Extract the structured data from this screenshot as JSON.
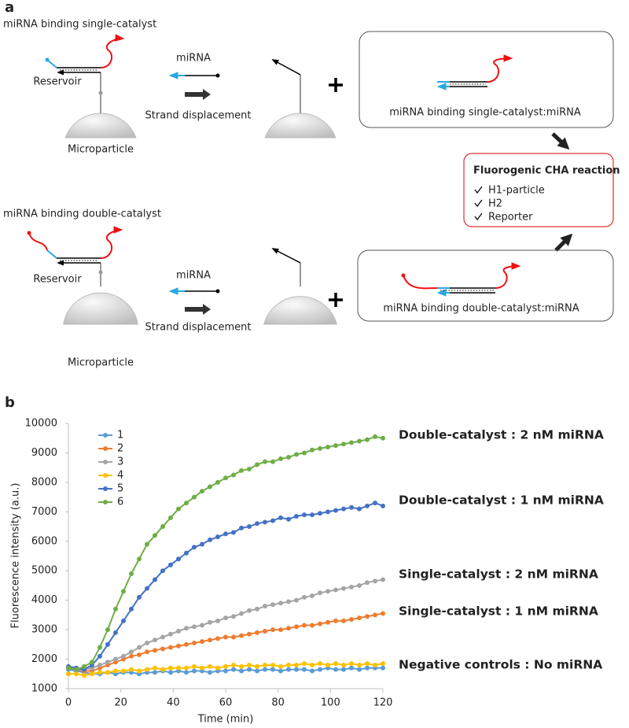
{
  "panel_a": {
    "label": "a",
    "single": {
      "title": "miRNA binding single-catalyst",
      "reservoir": "Reservoir",
      "microparticle": "Microparticle",
      "mirna": "miRNA",
      "step": "Strand displacement",
      "product": "miRNA binding single-catalyst:miRNA"
    },
    "double": {
      "title": "miRNA binding double-catalyst",
      "reservoir": "Reservoir",
      "microparticle": "Microparticle",
      "mirna": "miRNA",
      "step": "Strand displacement",
      "product": "miRNA binding double-catalyst:miRNA"
    },
    "reaction": {
      "title": "Fluorogenic CHA reaction",
      "items": [
        "H1-particle",
        "H2",
        "Reporter"
      ]
    }
  },
  "chart_data": {
    "type": "line",
    "panel_label": "b",
    "x_label": "Time (min)",
    "y_label": "Fluorescence intensity (a.u.)",
    "x": [
      0,
      3,
      6,
      9,
      12,
      15,
      18,
      21,
      24,
      27,
      30,
      33,
      36,
      39,
      42,
      45,
      48,
      51,
      54,
      57,
      60,
      63,
      66,
      69,
      72,
      75,
      78,
      81,
      84,
      87,
      90,
      93,
      96,
      99,
      102,
      105,
      108,
      111,
      114,
      117,
      120
    ],
    "series": [
      {
        "name": "1",
        "color": "#5b9bd5",
        "values": [
          1650,
          1600,
          1550,
          1500,
          1500,
          1550,
          1500,
          1550,
          1550,
          1500,
          1550,
          1550,
          1600,
          1550,
          1600,
          1550,
          1600,
          1600,
          1550,
          1600,
          1600,
          1650,
          1600,
          1650,
          1600,
          1650,
          1650,
          1600,
          1650,
          1650,
          1650,
          1600,
          1650,
          1700,
          1650,
          1650,
          1700,
          1650,
          1700,
          1700,
          1700
        ]
      },
      {
        "name": "2",
        "color": "#ed7d31",
        "values": [
          1700,
          1650,
          1600,
          1600,
          1700,
          1800,
          1900,
          2000,
          2100,
          2150,
          2250,
          2300,
          2350,
          2400,
          2450,
          2500,
          2550,
          2600,
          2650,
          2700,
          2750,
          2750,
          2800,
          2850,
          2900,
          2950,
          3000,
          3000,
          3050,
          3100,
          3150,
          3150,
          3200,
          3250,
          3300,
          3300,
          3350,
          3400,
          3450,
          3500,
          3550
        ]
      },
      {
        "name": "3",
        "color": "#a5a5a5",
        "values": [
          1700,
          1650,
          1650,
          1700,
          1800,
          1900,
          2000,
          2100,
          2250,
          2400,
          2550,
          2650,
          2750,
          2850,
          2950,
          3050,
          3100,
          3150,
          3250,
          3300,
          3400,
          3450,
          3550,
          3650,
          3700,
          3800,
          3850,
          3900,
          3950,
          4000,
          4100,
          4150,
          4250,
          4300,
          4350,
          4400,
          4450,
          4500,
          4600,
          4650,
          4700
        ]
      },
      {
        "name": "4",
        "color": "#ffc000",
        "values": [
          1500,
          1500,
          1450,
          1500,
          1550,
          1550,
          1600,
          1600,
          1650,
          1600,
          1650,
          1700,
          1650,
          1700,
          1700,
          1700,
          1750,
          1700,
          1750,
          1700,
          1750,
          1800,
          1750,
          1800,
          1750,
          1800,
          1800,
          1750,
          1800,
          1800,
          1850,
          1800,
          1850,
          1800,
          1850,
          1800,
          1850,
          1800,
          1850,
          1800,
          1850
        ]
      },
      {
        "name": "5",
        "color": "#4472c4",
        "values": [
          1750,
          1700,
          1650,
          1800,
          2100,
          2500,
          2900,
          3300,
          3700,
          4100,
          4400,
          4700,
          5000,
          5200,
          5400,
          5600,
          5800,
          5900,
          6050,
          6150,
          6250,
          6300,
          6450,
          6500,
          6600,
          6650,
          6700,
          6800,
          6750,
          6850,
          6900,
          6900,
          6950,
          7000,
          7050,
          7100,
          7150,
          7100,
          7200,
          7300,
          7200
        ]
      },
      {
        "name": "6",
        "color": "#70ad47",
        "values": [
          1700,
          1650,
          1750,
          1900,
          2400,
          3000,
          3700,
          4300,
          4900,
          5400,
          5900,
          6200,
          6500,
          6800,
          7100,
          7300,
          7500,
          7700,
          7850,
          8000,
          8150,
          8250,
          8400,
          8450,
          8600,
          8700,
          8700,
          8800,
          8850,
          8950,
          9000,
          9100,
          9150,
          9200,
          9250,
          9300,
          9350,
          9400,
          9450,
          9550,
          9500
        ]
      }
    ],
    "xlim": [
      0,
      120
    ],
    "ylim": [
      1000,
      10000
    ],
    "xticks": [
      0,
      20,
      40,
      60,
      80,
      100,
      120
    ],
    "yticks": [
      1000,
      2000,
      3000,
      4000,
      5000,
      6000,
      7000,
      8000,
      9000,
      10000
    ],
    "legend": "upper left",
    "markers": true,
    "annotations": [
      {
        "text": "Double-catalyst : 2 nM miRNA",
        "color": "#5b8f3a"
      },
      {
        "text": "Double-catalyst : 1 nM miRNA",
        "color": "#2f5597"
      },
      {
        "text": "Single-catalyst : 2 nM miRNA",
        "color": "#a5a5a5"
      },
      {
        "text": "Single-catalyst : 1 nM miRNA",
        "color": "#e06c1c"
      },
      {
        "text": "Negative controls : No miRNA",
        "color": "#000000"
      }
    ]
  }
}
